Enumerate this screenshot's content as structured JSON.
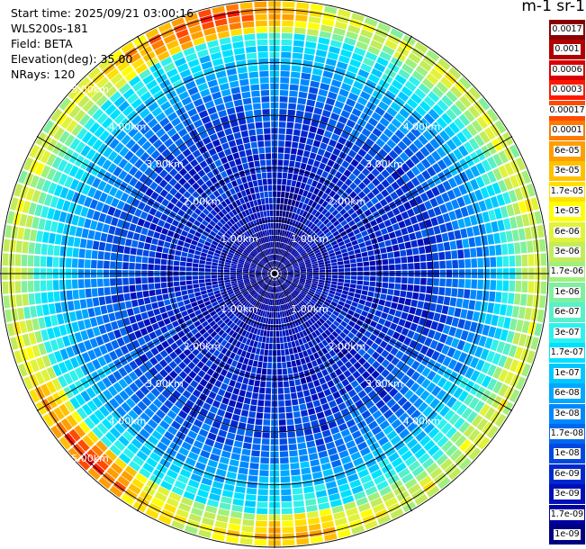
{
  "info": {
    "start_time": "Start time: 2025/09/21 03:00:16",
    "instrument": "WLS200s-181",
    "field": "Field: BETA",
    "elevation": "Elevation(deg): 35.00",
    "nrays": "NRays: 120"
  },
  "colorbar": {
    "title": "m-1 sr-1",
    "labels": [
      "0.0017",
      "0.001",
      "0.0006",
      "0.0003",
      "0.00017",
      "0.0001",
      "6e-05",
      "3e-05",
      "1.7e-05",
      "1e-05",
      "6e-06",
      "3e-06",
      "1.7e-06",
      "1e-06",
      "6e-07",
      "3e-07",
      "1.7e-07",
      "1e-07",
      "6e-08",
      "3e-08",
      "1.7e-08",
      "1e-08",
      "6e-09",
      "3e-09",
      "1.7e-09",
      "1e-09"
    ],
    "colors": [
      "#8a0000",
      "#b00000",
      "#d80000",
      "#ff1800",
      "#ff4a00",
      "#ff7a00",
      "#ff9e00",
      "#ffc000",
      "#ffe000",
      "#ffff00",
      "#e0f23a",
      "#c2ec5a",
      "#9ff07e",
      "#7ff0a0",
      "#58f0c8",
      "#2ff0ec",
      "#00e0ff",
      "#00c8ff",
      "#00a8ff",
      "#0088ff",
      "#0068f0",
      "#0048e0",
      "#0028d0",
      "#0010b8",
      "#0000a0",
      "#000080"
    ]
  },
  "chart_data": {
    "type": "heatmap",
    "plot": "PPI polar scan",
    "field": "BETA",
    "elevation_deg": 35.0,
    "n_rays": 120,
    "range_rings_km": [
      1,
      2,
      3,
      4,
      5
    ],
    "ring_labels": [
      "1.00km",
      "2.00km",
      "3.00km",
      "4.00km",
      "5.00km"
    ],
    "spokes_deg": [
      0,
      30,
      60,
      90,
      120,
      150,
      180,
      210,
      240,
      270,
      300,
      330
    ],
    "max_range_km": 5.2,
    "range_gate_km": 0.12,
    "radial_profile_log10_beta": [
      [
        0.0,
        -8.9
      ],
      [
        0.6,
        -8.8
      ],
      [
        1.0,
        -8.5
      ],
      [
        1.5,
        -8.4
      ],
      [
        2.0,
        -8.3
      ],
      [
        2.5,
        -8.2
      ],
      [
        3.0,
        -8.0
      ],
      [
        3.5,
        -7.6
      ],
      [
        4.0,
        -7.1
      ],
      [
        4.5,
        -6.5
      ],
      [
        4.8,
        -5.5
      ],
      [
        5.0,
        -5.2
      ],
      [
        5.2,
        -6.2
      ]
    ],
    "azimuth_notes": "enhanced backscatter (orange/red) near 5 km toward NNW and SW; dark-blue low-return band near north at 0.5-1.5 km"
  }
}
